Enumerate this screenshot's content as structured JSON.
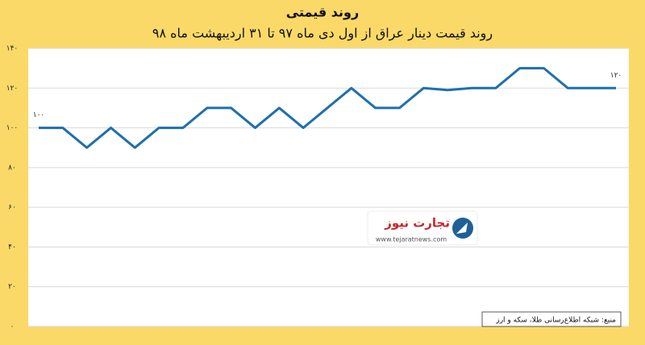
{
  "chart_data": {
    "type": "line",
    "title": "روند قیمتی",
    "subtitle": "روند قیمت دینار عراق از اول دی ماه ۹۷ تا ۳۱ اردیبهشت ماه ۹۸",
    "source": "منبع: شبکه اطلاع‌رسانی طلا، سکه و ارز",
    "watermark": {
      "name": "تجارت نیوز",
      "url": "www.tejaratnews.com"
    },
    "categories": [
      null,
      null,
      null,
      null,
      null,
      null,
      null,
      null,
      null,
      null,
      null,
      null,
      null,
      null,
      null,
      null,
      null,
      null,
      null,
      null,
      null,
      null,
      null,
      null,
      null
    ],
    "series": [
      {
        "color": "#1f6fae",
        "values": [
          100,
          100,
          90,
          100,
          90,
          100,
          100,
          110,
          110,
          100,
          110,
          100,
          110,
          120,
          110,
          110,
          120,
          119,
          120,
          120,
          130,
          130,
          120,
          120,
          120
        ],
        "value_labels": [
          "۱۰۰",
          null,
          null,
          null,
          null,
          null,
          null,
          null,
          null,
          null,
          null,
          null,
          null,
          null,
          null,
          null,
          null,
          null,
          null,
          null,
          null,
          null,
          null,
          null,
          "۱۲۰"
        ]
      }
    ],
    "ylim": [
      0,
      140
    ],
    "yticks": [
      {
        "value": 0,
        "label": "۰"
      },
      {
        "value": 20,
        "label": "۲۰"
      },
      {
        "value": 40,
        "label": "۴۰"
      },
      {
        "value": 60,
        "label": "۶۰"
      },
      {
        "value": 80,
        "label": "۸۰"
      },
      {
        "value": 100,
        "label": "۱۰۰"
      },
      {
        "value": 120,
        "label": "۱۲۰"
      },
      {
        "value": 140,
        "label": "۱۴۰"
      }
    ],
    "grid": true
  }
}
